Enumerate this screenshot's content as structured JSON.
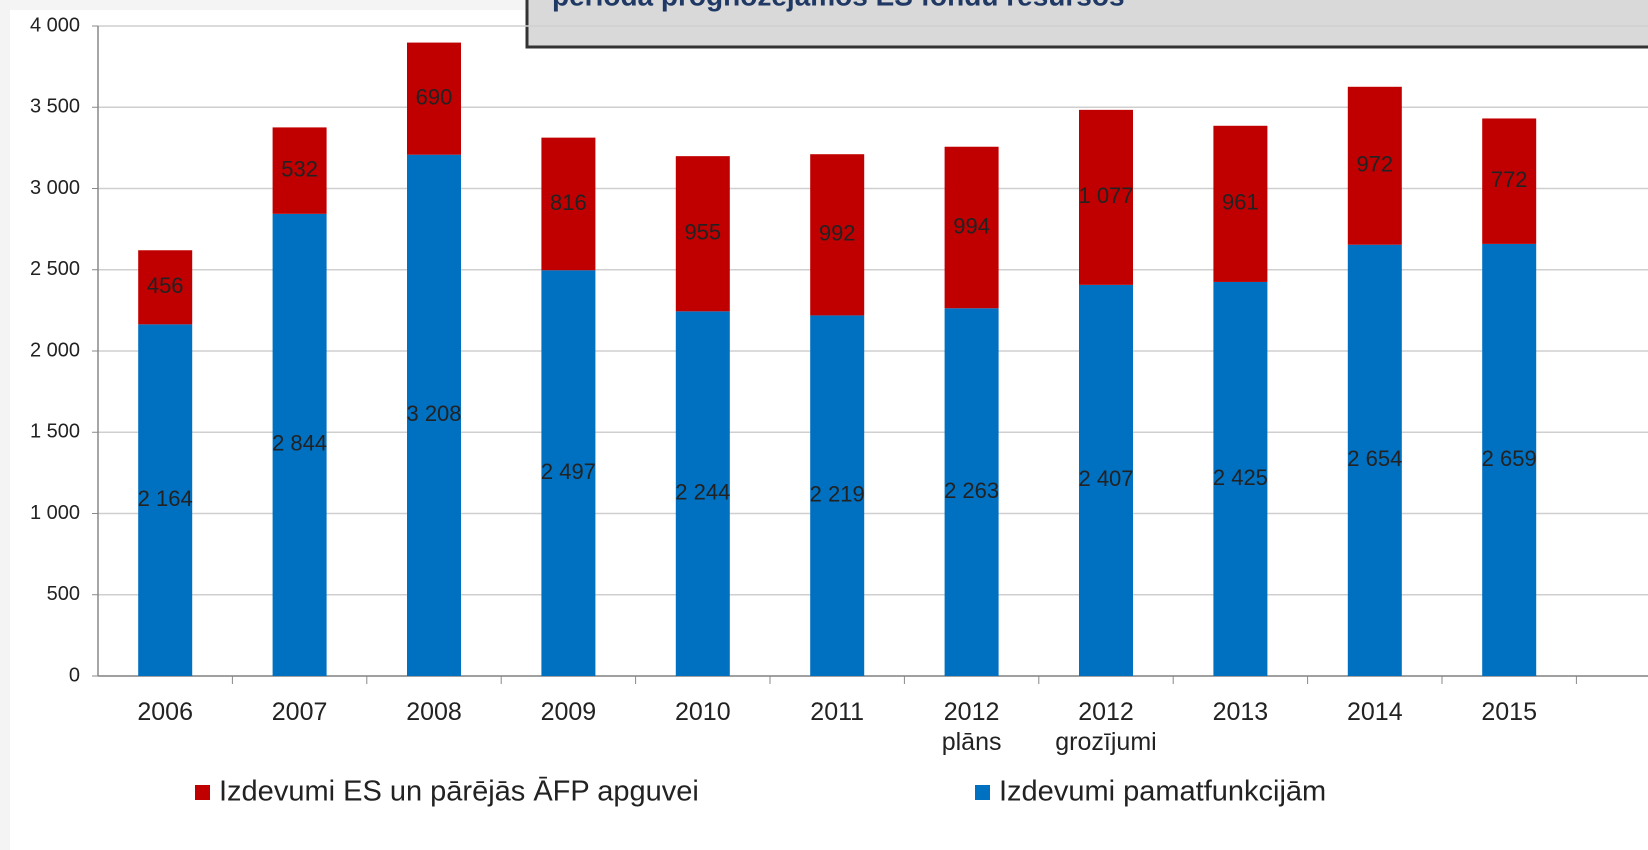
{
  "chart_data": {
    "type": "stacked_bar",
    "title": "perioda prognozējamos ES fondu resursos",
    "categories": [
      "2006",
      "2007",
      "2008",
      "2009",
      "2010",
      "2011",
      "2012\nplāns",
      "2012\ngrozījumi",
      "2013",
      "2014",
      "2015"
    ],
    "series": [
      {
        "name": "Izdevumi pamatfunkcijām",
        "color": "#0070c0",
        "values": [
          2164,
          2844,
          3208,
          2497,
          2244,
          2219,
          2263,
          2407,
          2425,
          2654,
          2659
        ],
        "value_labels": [
          "2 164",
          "2 844",
          "3 208",
          "2 497",
          "2 244",
          "2 219",
          "2 263",
          "2 407",
          "2 425",
          "2 654",
          "2 659"
        ]
      },
      {
        "name": "Izdevumi ES un pārējās ĀFP apguvei",
        "color": "#c00000",
        "values": [
          456,
          532,
          690,
          816,
          955,
          992,
          994,
          1077,
          961,
          972,
          772
        ],
        "value_labels": [
          "456",
          "532",
          "690",
          "816",
          "955",
          "992",
          "994",
          "1 077",
          "961",
          "972",
          "772"
        ]
      }
    ],
    "ylim": [
      0,
      4000
    ],
    "yticks": [
      0,
      500,
      {
        "value": 1000,
        "label": "1 000"
      },
      {
        "value": 1500,
        "label": "1 500"
      },
      {
        "value": 2000,
        "label": "2 000"
      },
      {
        "value": 2500,
        "label": "2 500"
      },
      {
        "value": 3000,
        "label": "3 000"
      },
      {
        "value": 3500,
        "label": "3 500"
      },
      {
        "value": 4000,
        "label": "4 000"
      }
    ],
    "grid": true
  }
}
